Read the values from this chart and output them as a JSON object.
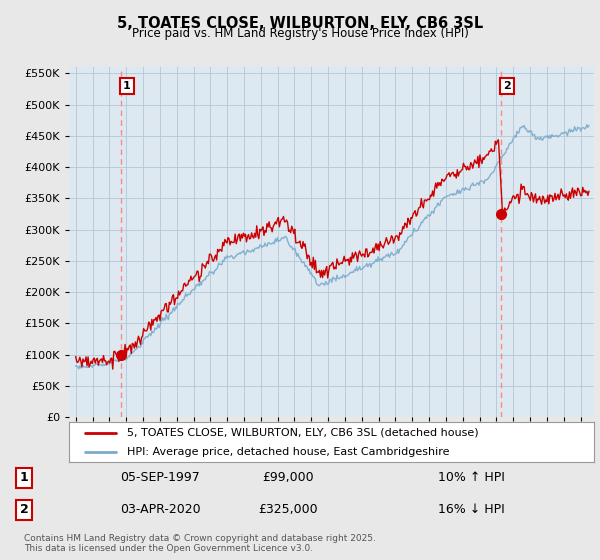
{
  "title": "5, TOATES CLOSE, WILBURTON, ELY, CB6 3SL",
  "subtitle": "Price paid vs. HM Land Registry's House Price Index (HPI)",
  "legend_line1": "5, TOATES CLOSE, WILBURTON, ELY, CB6 3SL (detached house)",
  "legend_line2": "HPI: Average price, detached house, East Cambridgeshire",
  "annotation1_date": "05-SEP-1997",
  "annotation1_price": "£99,000",
  "annotation1_hpi": "10% ↑ HPI",
  "annotation2_date": "03-APR-2020",
  "annotation2_price": "£325,000",
  "annotation2_hpi": "16% ↓ HPI",
  "footer": "Contains HM Land Registry data © Crown copyright and database right 2025.\nThis data is licensed under the Open Government Licence v3.0.",
  "red_color": "#cc0000",
  "blue_color": "#7aaacc",
  "dashed_color": "#ff8888",
  "background_color": "#e8e8e8",
  "plot_bg_color": "#dde8f0",
  "ylim": [
    0,
    560000
  ],
  "yticks": [
    0,
    50000,
    100000,
    150000,
    200000,
    250000,
    300000,
    350000,
    400000,
    450000,
    500000,
    550000
  ],
  "sale1_x": 1997.67,
  "sale1_y": 99000,
  "sale2_x": 2020.25,
  "sale2_y": 325000,
  "xlim_left": 1994.6,
  "xlim_right": 2025.8
}
